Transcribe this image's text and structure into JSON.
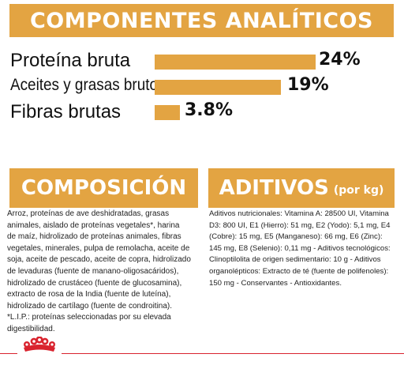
{
  "analytic": {
    "title": "COMPONENTES ANALÍTICOS",
    "rows": [
      {
        "label": "Proteína bruta",
        "value": "24%"
      },
      {
        "label": "Aceites y grasas brutos",
        "value": "19%"
      },
      {
        "label": "Fibras brutas",
        "value": "3.8%"
      }
    ]
  },
  "composition": {
    "title": "COMPOSICIÓN",
    "lines": [
      "Arroz, proteínas de ave deshidratadas, grasas",
      "animales, aislado de proteínas vegetales*, harina",
      "de maíz, hidrolizado de proteínas animales, fibras",
      "vegetales, minerales, pulpa de remolacha, aceite de",
      "soja, aceite de pescado, aceite de copra, hidrolizado",
      "de levaduras (fuente de manano-oligosacáridos),",
      "hidrolizado de crustáceo (fuente de glucosamina),",
      "extracto de rosa de la India (fuente de luteína),",
      "hidrolizado de cartílago (fuente de condroitina).",
      "*L.I.P.: proteínas seleccionadas por su elevada",
      "digestibilidad."
    ]
  },
  "additives": {
    "title": "ADITIVOS",
    "subtitle": "(por kg)",
    "lines": [
      "Aditivos nutricionales: Vitamina A: 28500 UI, Vitamina",
      "D3: 800 UI, E1 (Hierro): 51 mg, E2 (Yodo): 5,1 mg, E4",
      "(Cobre): 15 mg, E5 (Manganeso): 66 mg, E6 (Zinc):",
      "145 mg, E8 (Selenio): 0,11 mg - Aditivos tecnológicos:",
      "Clinoptilolita de origen sedimentario: 10 g - Aditivos",
      "organolépticos: Extracto de té (fuente de polifenoles):",
      "150 mg - Conservantes - Antioxidantes."
    ]
  },
  "colors": {
    "accent": "#e3a442",
    "brand": "#d9232e"
  },
  "logo_icon": "royal-canin-crown"
}
